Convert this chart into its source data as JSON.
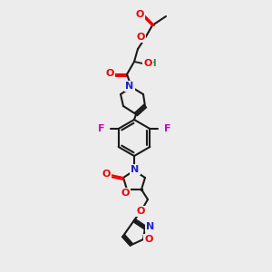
{
  "background_color": "#ececec",
  "bond_color": "#1a1a1a",
  "atom_colors": {
    "O": "#ee0000",
    "N": "#2222cc",
    "F": "#cc00cc",
    "H": "#2e8b57",
    "C": "#1a1a1a"
  },
  "figsize": [
    3.0,
    3.0
  ],
  "dpi": 100
}
